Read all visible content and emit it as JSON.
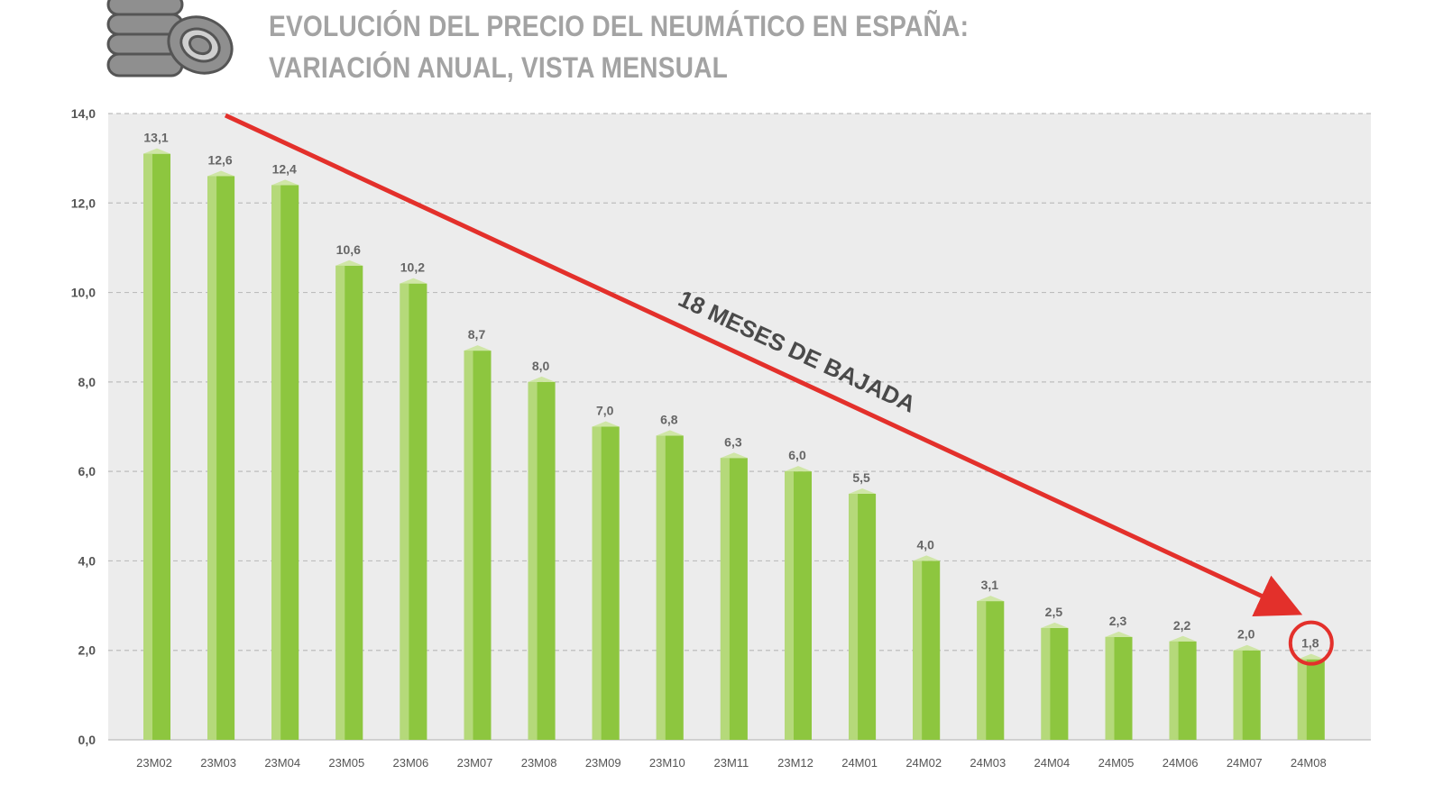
{
  "title_lines": [
    "EVOLUCIÓN DEL PRECIO DEL NEUMÁTICO EN ESPAÑA:",
    "VARIACIÓN ANUAL, VISTA MENSUAL"
  ],
  "logo_icon": "tire-stack-icon",
  "colors": {
    "bar_front": "#8dc63f",
    "bar_side": "#b5d97a",
    "bar_top": "#cfe6a6",
    "plot_bg": "#ececec",
    "arrow": "#e3302b",
    "title": "#a3a3a3"
  },
  "chart_data": {
    "type": "bar",
    "categories": [
      "23M02",
      "23M03",
      "23M04",
      "23M05",
      "23M06",
      "23M07",
      "23M08",
      "23M09",
      "23M10",
      "23M11",
      "23M12",
      "24M01",
      "24M02",
      "24M03",
      "24M04",
      "24M05",
      "24M06",
      "24M07",
      "24M08"
    ],
    "values": [
      13.1,
      12.6,
      12.4,
      10.6,
      10.2,
      8.7,
      8.0,
      7.0,
      6.8,
      6.3,
      6.0,
      5.5,
      4.0,
      3.1,
      2.5,
      2.3,
      2.2,
      2.0,
      1.8
    ],
    "value_labels": [
      "13,1",
      "12,6",
      "12,4",
      "10,6",
      "10,2",
      "8,7",
      "8,0",
      "7,0",
      "6,8",
      "6,3",
      "6,0",
      "5,5",
      "4,0",
      "3,1",
      "2,5",
      "2,3",
      "2,2",
      "2,0",
      "1,8"
    ],
    "ylim": [
      0,
      14
    ],
    "yticks": [
      0,
      2,
      4,
      6,
      8,
      10,
      12,
      14
    ],
    "ytick_labels": [
      "0,0",
      "2,0",
      "4,0",
      "6,0",
      "8,0",
      "10,0",
      "12,0",
      "14,0"
    ],
    "grid": true,
    "legend": "none",
    "annotation": "18 MESES DE BAJADA",
    "highlighted_category": "24M08"
  }
}
